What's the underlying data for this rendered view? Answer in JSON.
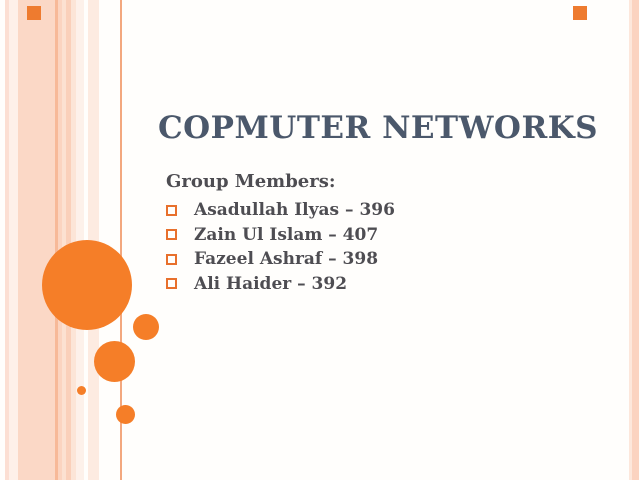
{
  "slide": {
    "title": "COPMUTER NETWORKS",
    "members_heading": "Group Members:",
    "members": [
      "Asadullah Ilyas – 396",
      "Zain Ul Islam – 407",
      "Fazeel Ashraf – 398",
      "Ali Haider – 392"
    ]
  },
  "theme": {
    "accent_orange": "#f57e28",
    "bullet_orange": "#e8702c",
    "corner_square_orange": "#ee7b2f",
    "stripe_pink": "#fbd8c6",
    "stripe_salmon": "#f7b998",
    "stripe_accent_line": "#f3a87f",
    "title_color": "#4b586b",
    "body_text_color": "#4e4d52",
    "background": "#fffefc",
    "icons": {
      "bullet": "hollow-square-bullet-icon"
    }
  }
}
